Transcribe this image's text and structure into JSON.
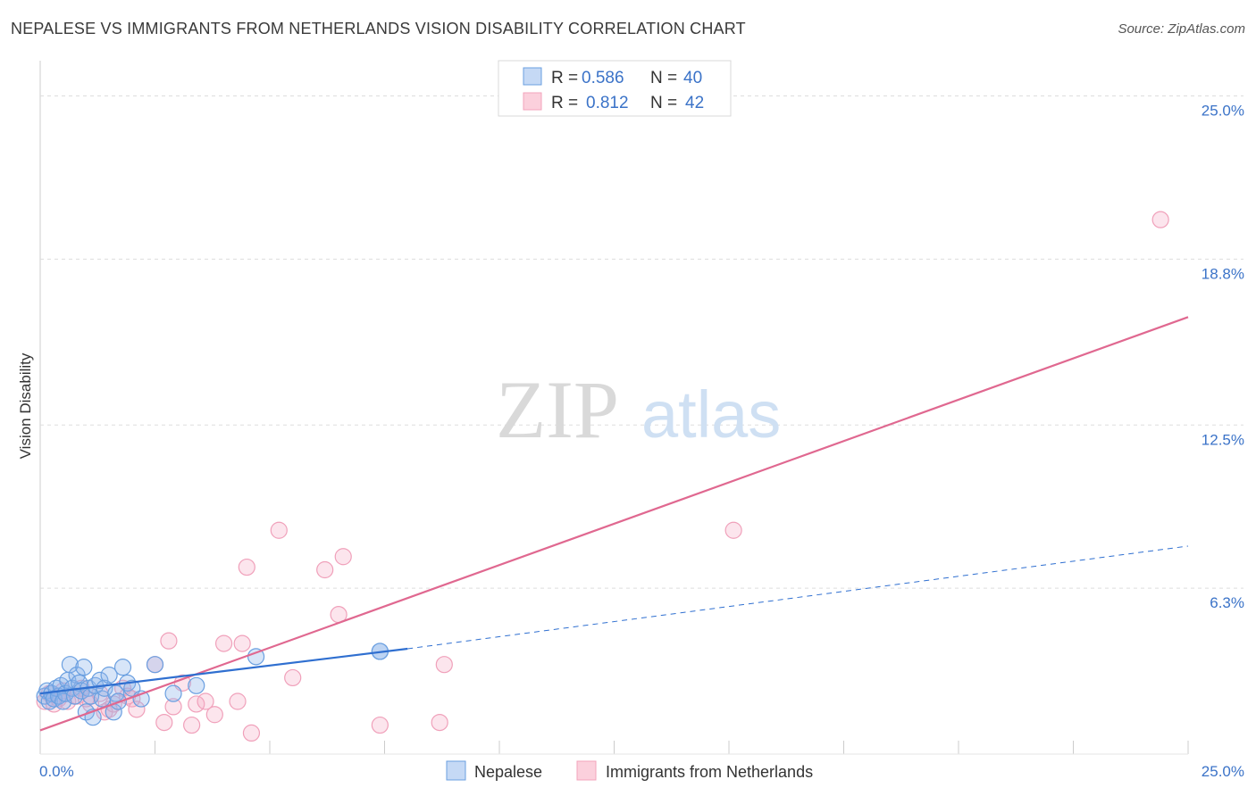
{
  "header": {
    "title": "NEPALESE VS IMMIGRANTS FROM NETHERLANDS VISION DISABILITY CORRELATION CHART",
    "source": "Source: ZipAtlas.com"
  },
  "watermark": {
    "zip": "ZIP",
    "atlas": "atlas"
  },
  "colors": {
    "blue": "#6a9fe0",
    "blue_line": "#2f6fd0",
    "pink": "#f3a3bb",
    "pink_line": "#e06890",
    "tick_blue": "#3b73c8"
  },
  "legend": {
    "rows": [
      {
        "r_label": "R =",
        "r_value": "0.586",
        "n_label": "N =",
        "n_value": "40"
      },
      {
        "r_label": "R =",
        "r_value": "0.812",
        "n_label": "N =",
        "n_value": "42"
      }
    ]
  },
  "chart_data": {
    "type": "scatter",
    "title": "NEPALESE VS IMMIGRANTS FROM NETHERLANDS VISION DISABILITY CORRELATION CHART",
    "ylabel": "Vision Disability",
    "xlabel": "",
    "xlim": [
      0,
      25
    ],
    "ylim": [
      0,
      26
    ],
    "x_tick_labels": [
      "0.0%",
      "25.0%"
    ],
    "y_ticks": [
      6.3,
      12.5,
      18.8,
      25.0
    ],
    "y_tick_labels": [
      "6.3%",
      "12.5%",
      "18.8%",
      "25.0%"
    ],
    "grid": true,
    "legend_position": "top-center",
    "series": [
      {
        "name": "Nepalese",
        "color": "#6a9fe0",
        "points": [
          [
            0.1,
            2.2
          ],
          [
            0.15,
            2.4
          ],
          [
            0.2,
            2.0
          ],
          [
            0.25,
            2.3
          ],
          [
            0.3,
            2.1
          ],
          [
            0.35,
            2.5
          ],
          [
            0.4,
            2.2
          ],
          [
            0.45,
            2.6
          ],
          [
            0.5,
            2.0
          ],
          [
            0.55,
            2.3
          ],
          [
            0.6,
            2.8
          ],
          [
            0.65,
            3.4
          ],
          [
            0.7,
            2.5
          ],
          [
            0.75,
            2.2
          ],
          [
            0.8,
            3.0
          ],
          [
            0.85,
            2.7
          ],
          [
            0.9,
            2.4
          ],
          [
            0.95,
            3.3
          ],
          [
            1.0,
            1.6
          ],
          [
            1.05,
            2.5
          ],
          [
            1.1,
            2.2
          ],
          [
            1.15,
            1.4
          ],
          [
            1.2,
            2.6
          ],
          [
            1.3,
            2.8
          ],
          [
            1.35,
            2.1
          ],
          [
            1.4,
            2.5
          ],
          [
            1.5,
            3.0
          ],
          [
            1.6,
            1.6
          ],
          [
            1.65,
            2.3
          ],
          [
            1.7,
            2.0
          ],
          [
            1.8,
            3.3
          ],
          [
            1.9,
            2.7
          ],
          [
            2.0,
            2.5
          ],
          [
            2.2,
            2.1
          ],
          [
            2.5,
            3.4
          ],
          [
            2.9,
            2.3
          ],
          [
            3.4,
            2.6
          ],
          [
            4.7,
            3.7
          ],
          [
            7.4,
            3.9
          ],
          [
            7.4,
            3.9
          ]
        ],
        "trend": {
          "x1": 0,
          "y1": 2.3,
          "x2": 8.0,
          "y2": 4.0,
          "dashed_to_x": 25,
          "dashed_to_y": 7.9
        }
      },
      {
        "name": "Immigrants from Netherlands",
        "color": "#f3a3bb",
        "points": [
          [
            0.1,
            2.0
          ],
          [
            0.2,
            2.3
          ],
          [
            0.3,
            1.9
          ],
          [
            0.4,
            2.1
          ],
          [
            0.5,
            2.4
          ],
          [
            0.6,
            2.0
          ],
          [
            0.8,
            2.2
          ],
          [
            0.9,
            2.5
          ],
          [
            1.0,
            2.1
          ],
          [
            1.1,
            1.9
          ],
          [
            1.3,
            2.3
          ],
          [
            1.4,
            1.6
          ],
          [
            1.5,
            1.7
          ],
          [
            1.6,
            1.9
          ],
          [
            1.8,
            2.5
          ],
          [
            1.9,
            2.2
          ],
          [
            2.0,
            2.1
          ],
          [
            2.1,
            1.7
          ],
          [
            2.5,
            3.4
          ],
          [
            2.7,
            1.2
          ],
          [
            2.8,
            4.3
          ],
          [
            2.9,
            1.8
          ],
          [
            3.1,
            2.7
          ],
          [
            3.3,
            1.1
          ],
          [
            3.4,
            1.9
          ],
          [
            3.6,
            2.0
          ],
          [
            3.8,
            1.5
          ],
          [
            4.0,
            4.2
          ],
          [
            4.3,
            2.0
          ],
          [
            4.4,
            4.2
          ],
          [
            4.5,
            7.1
          ],
          [
            4.6,
            0.8
          ],
          [
            5.2,
            8.5
          ],
          [
            5.5,
            2.9
          ],
          [
            6.2,
            7.0
          ],
          [
            6.5,
            5.3
          ],
          [
            6.6,
            7.5
          ],
          [
            7.4,
            1.1
          ],
          [
            8.8,
            3.4
          ],
          [
            8.7,
            1.2
          ],
          [
            15.1,
            8.5
          ],
          [
            24.4,
            20.3
          ]
        ],
        "trend": {
          "x1": 0,
          "y1": 0.9,
          "x2": 25,
          "y2": 16.6
        }
      }
    ]
  },
  "bottom_legend": [
    {
      "label": "Nepalese"
    },
    {
      "label": "Immigrants from Netherlands"
    }
  ]
}
